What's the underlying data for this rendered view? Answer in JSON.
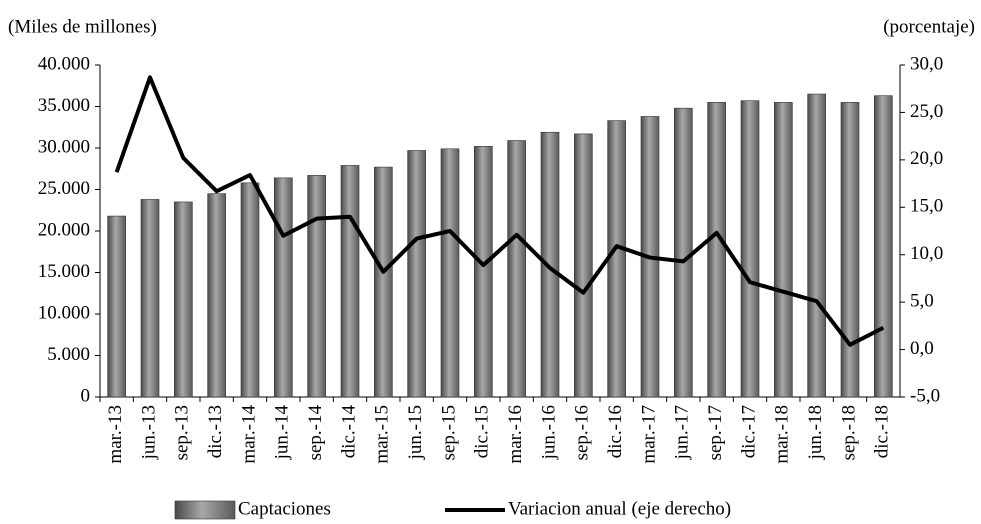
{
  "chart_data": {
    "type": "bar-line",
    "y_label": "(Miles de millones)",
    "y2_label": "(porcentaje)",
    "categories": [
      "mar.-13",
      "jun.-13",
      "sep.-13",
      "dic.-13",
      "mar.-14",
      "jun.-14",
      "sep.-14",
      "dic.-14",
      "mar.-15",
      "jun.-15",
      "sep.-15",
      "dic.-15",
      "mar.-16",
      "jun.-16",
      "sep.-16",
      "dic.-16",
      "mar.-17",
      "jun.-17",
      "sep.-17",
      "dic.-17",
      "mar.-18",
      "jun.-18",
      "sep.-18",
      "dic.-18"
    ],
    "series": [
      {
        "name": "Captaciones",
        "type": "bar",
        "color": "#808080",
        "values": [
          21800,
          23800,
          23500,
          24500,
          25800,
          26400,
          26700,
          27900,
          27700,
          29700,
          29900,
          30200,
          30900,
          31900,
          31700,
          33300,
          33800,
          34800,
          35500,
          35700,
          35500,
          36500,
          35500,
          36300
        ]
      },
      {
        "name": "Variacion anual (eje derecho)",
        "type": "line",
        "axis": "y2",
        "color": "#000000",
        "values": [
          18.7,
          28.7,
          20.2,
          16.7,
          18.4,
          12.0,
          13.8,
          14.0,
          8.2,
          11.7,
          12.5,
          8.9,
          12.1,
          8.6,
          6.0,
          10.9,
          9.7,
          9.3,
          12.3,
          7.1,
          6.1,
          5.1,
          0.5,
          2.3
        ]
      }
    ],
    "ylim": [
      0,
      40000
    ],
    "yticks": [
      0,
      {
        "value": 5000,
        "label": "5.000"
      },
      {
        "value": 10000,
        "label": "10.000"
      },
      {
        "value": 15000,
        "label": "15.000"
      },
      {
        "value": 20000,
        "label": "20.000"
      },
      {
        "value": 25000,
        "label": "25.000"
      },
      {
        "value": 30000,
        "label": "30.000"
      },
      {
        "value": 35000,
        "label": "35.000"
      },
      {
        "value": 40000,
        "label": "40.000"
      }
    ],
    "y2lim": [
      -5,
      30
    ],
    "y2ticks": [
      {
        "value": -5,
        "label": "-5,0"
      },
      {
        "value": 0,
        "label": "0,0"
      },
      {
        "value": 5,
        "label": "5,0"
      },
      {
        "value": 10,
        "label": "10,0"
      },
      {
        "value": 15,
        "label": "15,0"
      },
      {
        "value": 20,
        "label": "20,0"
      },
      {
        "value": 25,
        "label": "25,0"
      },
      {
        "value": 30,
        "label": "30,0"
      }
    ],
    "legend": "bottom"
  }
}
